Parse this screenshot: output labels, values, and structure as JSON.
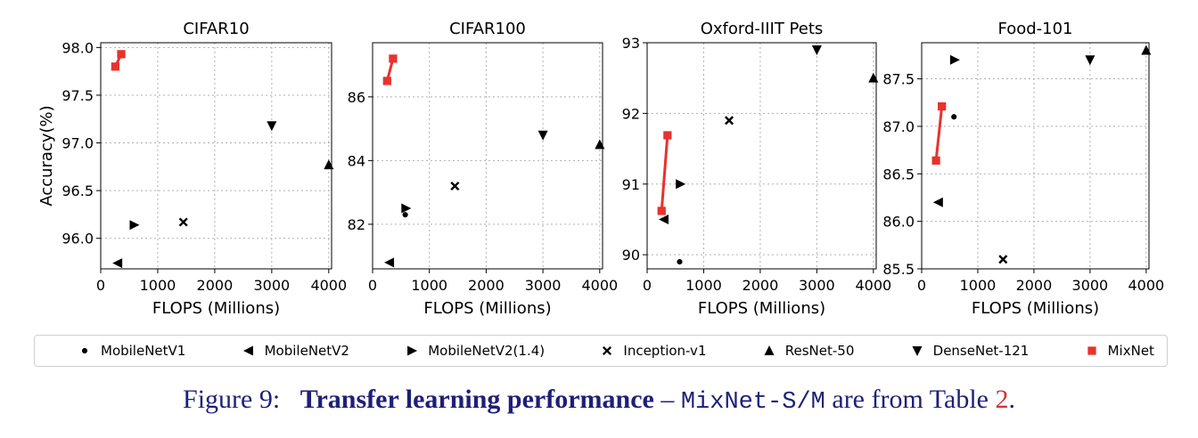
{
  "chart_data": [
    {
      "type": "scatter",
      "title": "CIFAR10",
      "xlabel": "FLOPS (Millions)",
      "ylabel": "Accuracy(%)",
      "xlim": [
        0,
        4050
      ],
      "ylim": [
        95.68,
        98.05
      ],
      "xticks": [
        0,
        1000,
        2000,
        3000,
        4000
      ],
      "xtick_labels": [
        "0",
        "1000",
        "2000",
        "3000",
        "4000"
      ],
      "yticks": [
        96.0,
        96.5,
        97.0,
        97.5,
        98.0
      ],
      "ytick_labels": [
        "96.0",
        "96.5",
        "97.0",
        "97.5",
        "98.0"
      ],
      "grid": true,
      "series": [
        {
          "name": "MobileNetV2",
          "marker": "left-triangle",
          "x": [
            300
          ],
          "y": [
            95.74
          ]
        },
        {
          "name": "MobileNetV2(1.4)",
          "marker": "right-triangle",
          "x": [
            585
          ],
          "y": [
            96.14
          ]
        },
        {
          "name": "Inception-v1",
          "marker": "x",
          "x": [
            1450
          ],
          "y": [
            96.17
          ]
        },
        {
          "name": "ResNet-50",
          "marker": "up-triangle",
          "x": [
            4000
          ],
          "y": [
            96.77
          ]
        },
        {
          "name": "DenseNet-121",
          "marker": "down-triangle",
          "x": [
            3000
          ],
          "y": [
            97.18
          ]
        },
        {
          "name": "MixNet",
          "marker": "square",
          "line": true,
          "x": [
            256,
            360
          ],
          "y": [
            97.8,
            97.93
          ]
        }
      ]
    },
    {
      "type": "scatter",
      "title": "CIFAR100",
      "xlabel": "FLOPS (Millions)",
      "ylabel": "",
      "xlim": [
        0,
        4050
      ],
      "ylim": [
        80.6,
        87.7
      ],
      "xticks": [
        0,
        1000,
        2000,
        3000,
        4000
      ],
      "xtick_labels": [
        "0",
        "1000",
        "2000",
        "3000",
        "4000"
      ],
      "yticks": [
        82,
        84,
        86
      ],
      "ytick_labels": [
        "82",
        "84",
        "86"
      ],
      "grid": true,
      "series": [
        {
          "name": "MobileNetV1",
          "marker": "dot",
          "x": [
            575
          ],
          "y": [
            82.3
          ]
        },
        {
          "name": "MobileNetV2",
          "marker": "left-triangle",
          "x": [
            300
          ],
          "y": [
            80.8
          ]
        },
        {
          "name": "MobileNetV2(1.4)",
          "marker": "right-triangle",
          "x": [
            585
          ],
          "y": [
            82.5
          ]
        },
        {
          "name": "Inception-v1",
          "marker": "x",
          "x": [
            1450
          ],
          "y": [
            83.2
          ]
        },
        {
          "name": "ResNet-50",
          "marker": "up-triangle",
          "x": [
            4000
          ],
          "y": [
            84.5
          ]
        },
        {
          "name": "DenseNet-121",
          "marker": "down-triangle",
          "x": [
            3000
          ],
          "y": [
            84.8
          ]
        },
        {
          "name": "MixNet",
          "marker": "square",
          "line": true,
          "x": [
            256,
            360
          ],
          "y": [
            86.5,
            87.2
          ]
        }
      ]
    },
    {
      "type": "scatter",
      "title": "Oxford-IIIT Pets",
      "xlabel": "FLOPS (Millions)",
      "ylabel": "",
      "xlim": [
        0,
        4050
      ],
      "ylim": [
        89.8,
        93.0
      ],
      "xticks": [
        0,
        1000,
        2000,
        3000,
        4000
      ],
      "xtick_labels": [
        "0",
        "1000",
        "2000",
        "3000",
        "4000"
      ],
      "yticks": [
        90,
        91,
        92,
        93
      ],
      "ytick_labels": [
        "90",
        "91",
        "92",
        "93"
      ],
      "grid": true,
      "series": [
        {
          "name": "MobileNetV1",
          "marker": "dot",
          "x": [
            575
          ],
          "y": [
            89.9
          ]
        },
        {
          "name": "MobileNetV2",
          "marker": "left-triangle",
          "x": [
            300
          ],
          "y": [
            90.5
          ]
        },
        {
          "name": "MobileNetV2(1.4)",
          "marker": "right-triangle",
          "x": [
            585
          ],
          "y": [
            91.0
          ]
        },
        {
          "name": "Inception-v1",
          "marker": "x",
          "x": [
            1450
          ],
          "y": [
            91.9
          ]
        },
        {
          "name": "ResNet-50",
          "marker": "up-triangle",
          "x": [
            4000
          ],
          "y": [
            92.5
          ]
        },
        {
          "name": "DenseNet-121",
          "marker": "down-triangle",
          "x": [
            3000
          ],
          "y": [
            92.9
          ]
        },
        {
          "name": "MixNet",
          "marker": "square",
          "line": true,
          "x": [
            256,
            360
          ],
          "y": [
            90.62,
            91.69
          ]
        }
      ]
    },
    {
      "type": "scatter",
      "title": "Food-101",
      "xlabel": "FLOPS (Millions)",
      "ylabel": "",
      "xlim": [
        0,
        4050
      ],
      "ylim": [
        85.5,
        87.88
      ],
      "xticks": [
        0,
        1000,
        2000,
        3000,
        4000
      ],
      "xtick_labels": [
        "0",
        "1000",
        "2000",
        "3000",
        "4000"
      ],
      "yticks": [
        85.5,
        86.0,
        86.5,
        87.0,
        87.5
      ],
      "ytick_labels": [
        "85.5",
        "86.0",
        "86.5",
        "87.0",
        "87.5"
      ],
      "grid": true,
      "series": [
        {
          "name": "MobileNetV1",
          "marker": "dot",
          "x": [
            575
          ],
          "y": [
            87.1
          ]
        },
        {
          "name": "MobileNetV2",
          "marker": "left-triangle",
          "x": [
            300
          ],
          "y": [
            86.2
          ]
        },
        {
          "name": "MobileNetV2(1.4)",
          "marker": "right-triangle",
          "x": [
            585
          ],
          "y": [
            87.7
          ]
        },
        {
          "name": "Inception-v1",
          "marker": "x",
          "x": [
            1450
          ],
          "y": [
            85.6
          ]
        },
        {
          "name": "ResNet-50",
          "marker": "up-triangle",
          "x": [
            4000
          ],
          "y": [
            87.8
          ]
        },
        {
          "name": "DenseNet-121",
          "marker": "down-triangle",
          "x": [
            3000
          ],
          "y": [
            87.7
          ]
        },
        {
          "name": "MixNet",
          "marker": "square",
          "line": true,
          "x": [
            256,
            360
          ],
          "y": [
            86.64,
            87.21
          ]
        }
      ]
    }
  ],
  "legend": {
    "placement": "bottom",
    "items": [
      {
        "label": "MobileNetV1",
        "marker": "dot",
        "color": "#000000"
      },
      {
        "label": "MobileNetV2",
        "marker": "left-triangle",
        "color": "#000000"
      },
      {
        "label": "MobileNetV2(1.4)",
        "marker": "right-triangle",
        "color": "#000000"
      },
      {
        "label": "Inception-v1",
        "marker": "x",
        "color": "#000000"
      },
      {
        "label": "ResNet-50",
        "marker": "up-triangle",
        "color": "#000000"
      },
      {
        "label": "DenseNet-121",
        "marker": "down-triangle",
        "color": "#000000"
      },
      {
        "label": "MixNet",
        "marker": "square",
        "color": "#e8322d"
      }
    ]
  },
  "colors": {
    "mixnet": "#e8322d",
    "markers": "#000000",
    "grid": "#b0b0b0",
    "caption": "#1f1f78",
    "caption_ref": "#d62f2f"
  },
  "caption": {
    "prefix": "Figure 9:",
    "bold": "Transfer learning performance",
    "dash": "–",
    "mono": "MixNet-S/M",
    "middle": "are from Table",
    "ref": "2",
    "end": "."
  }
}
